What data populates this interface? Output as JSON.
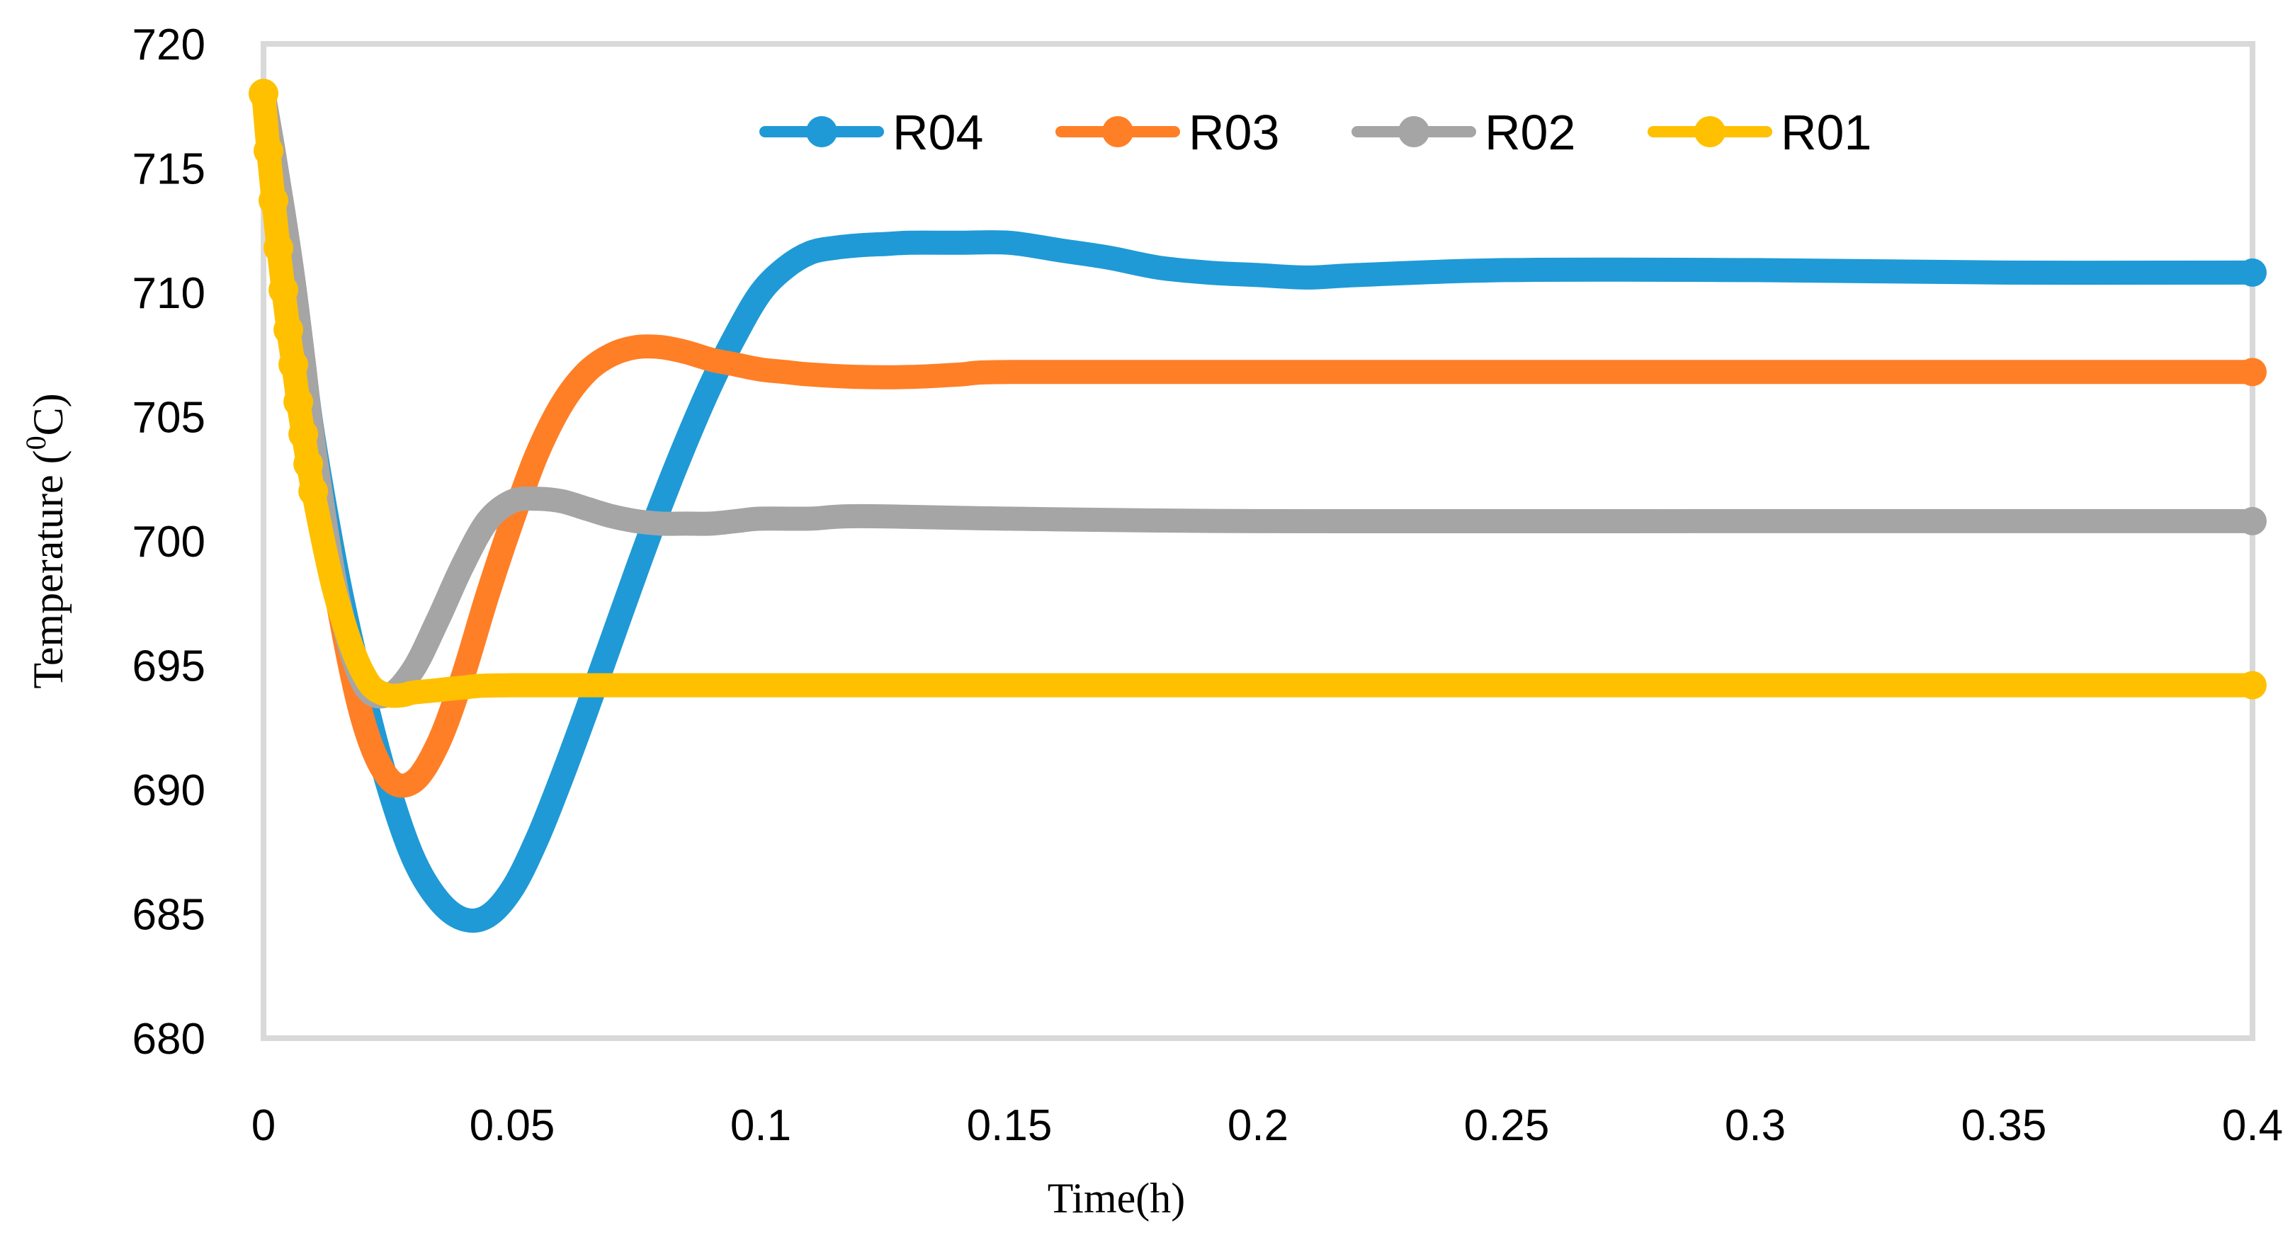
{
  "chart_data": {
    "type": "line",
    "title": "",
    "xlabel": "Time(h)",
    "ylabel": {
      "prefix": "Temperature (",
      "superscript": "0",
      "suffix": "C)"
    },
    "xlim": [
      0,
      0.4
    ],
    "ylim": [
      680,
      720
    ],
    "x_ticks": [
      0,
      0.05,
      0.1,
      0.15,
      0.2,
      0.25,
      0.3,
      0.35,
      0.4
    ],
    "x_tick_labels": [
      "0",
      "0.05",
      "0.1",
      "0.15",
      "0.2",
      "0.25",
      "0.3",
      "0.35",
      "0.4"
    ],
    "y_ticks": [
      680,
      685,
      690,
      695,
      700,
      705,
      710,
      715,
      720
    ],
    "y_tick_labels": [
      "680",
      "685",
      "690",
      "695",
      "700",
      "705",
      "710",
      "715",
      "720"
    ],
    "grid": false,
    "legend_position": "top-center",
    "series": [
      {
        "name": "R04",
        "color": "#1F9AD6",
        "x": [
          0,
          0.002,
          0.004,
          0.006,
          0.008,
          0.01,
          0.015,
          0.02,
          0.025,
          0.03,
          0.035,
          0.04,
          0.045,
          0.05,
          0.055,
          0.06,
          0.065,
          0.07,
          0.075,
          0.08,
          0.085,
          0.09,
          0.095,
          0.1,
          0.105,
          0.11,
          0.115,
          0.12,
          0.125,
          0.13,
          0.14,
          0.15,
          0.16,
          0.17,
          0.18,
          0.19,
          0.2,
          0.21,
          0.22,
          0.25,
          0.3,
          0.35,
          0.4
        ],
        "y": [
          718,
          715.7,
          713.2,
          710.5,
          707.3,
          704.2,
          698.5,
          694,
          690.2,
          687.3,
          685.6,
          684.8,
          684.9,
          686,
          688,
          690.5,
          693.2,
          696,
          698.8,
          701.5,
          704,
          706.3,
          708.3,
          710,
          711,
          711.6,
          711.8,
          711.9,
          711.95,
          712,
          712,
          712,
          711.7,
          711.4,
          711,
          710.8,
          710.7,
          710.6,
          710.7,
          710.9,
          710.9,
          710.8,
          710.8
        ]
      },
      {
        "name": "R03",
        "color": "#FF7F27",
        "x": [
          0,
          0.002,
          0.004,
          0.006,
          0.008,
          0.01,
          0.015,
          0.02,
          0.025,
          0.03,
          0.035,
          0.04,
          0.045,
          0.05,
          0.055,
          0.06,
          0.065,
          0.07,
          0.075,
          0.08,
          0.085,
          0.09,
          0.095,
          0.1,
          0.105,
          0.11,
          0.12,
          0.13,
          0.14,
          0.15,
          0.2,
          0.3,
          0.4
        ],
        "y": [
          718,
          715.7,
          713.2,
          710.5,
          707.3,
          704,
          697.5,
          692.8,
          690.5,
          690.3,
          691.8,
          694.5,
          697.8,
          700.8,
          703.5,
          705.5,
          706.8,
          707.5,
          707.8,
          707.8,
          707.6,
          707.3,
          707.1,
          706.9,
          706.8,
          706.7,
          706.6,
          706.6,
          706.7,
          706.8,
          706.8,
          706.8,
          706.8
        ]
      },
      {
        "name": "R02",
        "color": "#A5A5A5",
        "x": [
          0,
          0.002,
          0.004,
          0.006,
          0.008,
          0.01,
          0.015,
          0.02,
          0.025,
          0.03,
          0.035,
          0.04,
          0.045,
          0.05,
          0.055,
          0.06,
          0.065,
          0.07,
          0.075,
          0.08,
          0.085,
          0.09,
          0.095,
          0.1,
          0.11,
          0.12,
          0.15,
          0.2,
          0.3,
          0.4
        ],
        "y": [
          718,
          715.7,
          713.2,
          710.5,
          707.3,
          704,
          697.7,
          694.3,
          693.8,
          694.8,
          696.8,
          699,
          700.8,
          701.6,
          701.7,
          701.6,
          701.3,
          701,
          700.8,
          700.7,
          700.7,
          700.7,
          700.8,
          700.9,
          700.9,
          701,
          700.9,
          700.8,
          700.8,
          700.8
        ]
      },
      {
        "name": "R01",
        "color": "#FFC000",
        "x": [
          0,
          0.001,
          0.002,
          0.003,
          0.004,
          0.005,
          0.006,
          0.007,
          0.008,
          0.009,
          0.01,
          0.012,
          0.014,
          0.016,
          0.018,
          0.02,
          0.022,
          0.025,
          0.028,
          0.03,
          0.035,
          0.04,
          0.05,
          0.1,
          0.2,
          0.3,
          0.4
        ],
        "y": [
          718,
          715.7,
          713.7,
          711.8,
          710.1,
          708.5,
          707.1,
          705.6,
          704.3,
          703.1,
          702,
          700,
          698.2,
          696.8,
          695.6,
          694.7,
          694.1,
          693.8,
          693.8,
          693.9,
          694,
          694.1,
          694.2,
          694.2,
          694.2,
          694.2,
          694.2
        ]
      }
    ]
  }
}
